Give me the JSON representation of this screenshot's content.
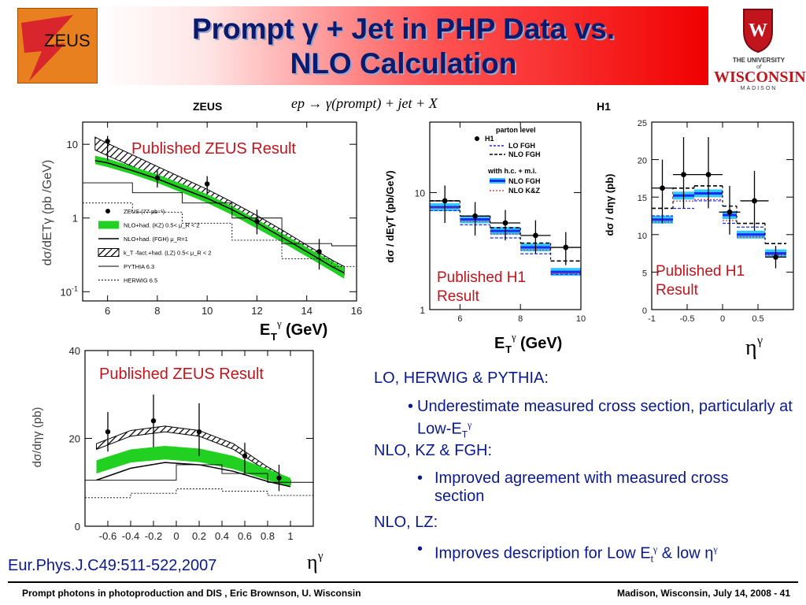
{
  "slide": {
    "title_line1": "Prompt γ + Jet in PHP Data vs.",
    "title_line2": "NLO Calculation",
    "zeus_logo_text": "ZEUS",
    "uw_logo": {
      "line1": "THE UNIVERSITY",
      "line2": "of",
      "line3": "WISCONSIN",
      "line4": "MADISON"
    },
    "label_zeus": "ZEUS",
    "label_h1": "H1",
    "process": "ep → γ(prompt) + jet + X",
    "reference": "Eur.Phys.J.C49:511-522,2007",
    "footer_left": "Prompt photons in photoproduction and DIS , Eric Brownson, U. Wisconsin",
    "footer_right": "Madison, Wisconsin, July 14, 2008 - 41"
  },
  "text_block": {
    "sections": [
      {
        "heading": "LO, HERWIG & PYTHIA:",
        "bullet": "Underestimate measured cross section, particularly at Low-E",
        "bullet_sub": "T",
        "bullet_sup": "γ"
      },
      {
        "heading": "NLO, KZ & FGH:",
        "bullet": "Improved agreement with measured cross section"
      },
      {
        "heading": "NLO, LZ:",
        "bullet": "Improves description for Low E",
        "bullet_sub": "t",
        "bullet_sup": "γ",
        "bullet_tail": " & low η",
        "bullet_tail_sup": "γ"
      }
    ]
  },
  "chart_data": [
    {
      "id": "zeus-et",
      "type": "scatter",
      "title": "Published ZEUS Result",
      "xlabel": "E_T^γ (GeV)",
      "ylabel": "dσ/dE_T^γ (pb /GeV)",
      "xscale": "linear",
      "yscale": "log",
      "xlim": [
        5,
        16
      ],
      "ylim": [
        0.075,
        20
      ],
      "xticks": [
        6,
        8,
        10,
        12,
        14,
        16
      ],
      "yticks": [
        {
          "v": 10,
          "label": "10"
        },
        {
          "v": 1,
          "label": "1"
        },
        {
          "v": 0.1,
          "label": "10^-1"
        }
      ],
      "data": {
        "x": [
          6,
          8,
          10,
          12,
          14.5
        ],
        "y": [
          11,
          3.5,
          2.9,
          0.9,
          0.35
        ],
        "yerr_lo": [
          6,
          2.6,
          2.1,
          0.6,
          0.2
        ],
        "yerr_hi": [
          13,
          4.4,
          3.7,
          1.3,
          0.52
        ]
      },
      "bands": {
        "x": [
          5.5,
          6,
          7,
          8,
          9,
          10,
          11,
          12,
          13,
          14,
          15,
          15.5
        ],
        "kz": {
          "lo": [
            5.4,
            4.9,
            3.9,
            3.0,
            2.2,
            1.6,
            1.1,
            0.72,
            0.47,
            0.3,
            0.19,
            0.15
          ],
          "hi": [
            7.0,
            6.4,
            5.0,
            3.9,
            2.9,
            2.1,
            1.45,
            0.95,
            0.62,
            0.4,
            0.26,
            0.21
          ]
        },
        "lz": {
          "lo": [
            8.4,
            7.0,
            5.0,
            3.6,
            2.6,
            1.8,
            1.25,
            0.82,
            0.53,
            0.33,
            0.21,
            0.17
          ],
          "hi": [
            12.5,
            10.3,
            7.2,
            5.0,
            3.5,
            2.45,
            1.65,
            1.08,
            0.69,
            0.43,
            0.27,
            0.22
          ]
        }
      },
      "fgh_line": {
        "x": [
          5.5,
          6,
          7,
          8,
          9,
          10,
          11,
          12,
          13,
          14,
          15,
          15.5
        ],
        "y": [
          6.0,
          5.6,
          4.4,
          3.4,
          2.5,
          1.85,
          1.3,
          0.86,
          0.55,
          0.35,
          0.22,
          0.18
        ]
      },
      "pythia": {
        "edges": [
          5,
          7,
          9,
          11,
          13,
          15,
          16
        ],
        "y": [
          3.0,
          2.2,
          1.6,
          1.0,
          0.45,
          0.42
        ]
      },
      "herwig": {
        "edges": [
          5,
          7,
          9,
          11,
          13,
          15,
          16
        ],
        "y": [
          1.6,
          1.2,
          0.85,
          0.5,
          0.28,
          0.22
        ]
      },
      "legend": [
        "ZEUS (77 pb⁻¹)",
        "NLO+had. (KZ) 0.5< μ_R < 2",
        "NLO+had. (FGH) μ_R=1",
        "k_T -fact.+had. (LZ) 0.5< μ_R < 2",
        "PYTHIA 6.3",
        "HERWIG 6.5"
      ],
      "legend_position": "bottom-left"
    },
    {
      "id": "zeus-eta",
      "type": "scatter",
      "title": "Published ZEUS Result",
      "xlabel": "η^γ",
      "ylabel": "dσ/dη^γ (pb)",
      "xscale": "linear",
      "yscale": "linear",
      "xlim": [
        -0.8,
        1.2
      ],
      "ylim": [
        0,
        40
      ],
      "xticks": [
        -0.6,
        -0.4,
        -0.2,
        0,
        0.2,
        0.4,
        0.6,
        0.8,
        1
      ],
      "yticks": [
        0,
        20,
        40
      ],
      "data": {
        "x": [
          -0.6,
          -0.2,
          0.2,
          0.6,
          0.9
        ],
        "y": [
          21.5,
          24,
          21.5,
          16,
          11
        ],
        "yerr_lo": [
          17,
          18,
          16,
          12,
          8
        ],
        "yerr_hi": [
          26,
          30,
          28,
          19,
          14
        ]
      },
      "bands": {
        "x": [
          -0.7,
          -0.4,
          -0.1,
          0.2,
          0.5,
          0.8,
          1.0
        ],
        "kz": {
          "lo": [
            12,
            14.5,
            15.2,
            14.6,
            13,
            10.5,
            9
          ],
          "hi": [
            15,
            17.5,
            18.3,
            17.7,
            16,
            13,
            11
          ]
        },
        "lz": {
          "lo": [
            17.5,
            20.5,
            21.5,
            20.5,
            17.5,
            12.5,
            9.5
          ],
          "hi": [
            18.8,
            21.8,
            22.8,
            21.8,
            18.8,
            13.5,
            10.5
          ]
        }
      },
      "fgh_line": {
        "x": [
          -0.7,
          -0.4,
          -0.1,
          0.2,
          0.5,
          0.8,
          1.0
        ],
        "y": [
          10.5,
          13.2,
          14.5,
          14,
          12.5,
          10.2,
          9
        ]
      },
      "pythia": {
        "edges": [
          -0.8,
          -0.4,
          0,
          0.4,
          0.8,
          1.2
        ],
        "y": [
          10.5,
          10.5,
          14,
          12,
          10
        ]
      },
      "herwig": {
        "edges": [
          -0.8,
          -0.4,
          0,
          0.4,
          0.8,
          1.2
        ],
        "y": [
          6.5,
          7.5,
          8.5,
          8,
          7
        ]
      }
    },
    {
      "id": "h1-et",
      "type": "scatter",
      "title": "Published H1 Result",
      "xlabel": "E_T^γ (GeV)",
      "ylabel": "dσ / dE_T^γ (pb/GeV)",
      "xscale": "linear",
      "yscale": "log",
      "xlim": [
        5,
        10
      ],
      "ylim": [
        1,
        40
      ],
      "xticks": [
        6,
        8,
        10
      ],
      "yticks": [
        {
          "v": 10,
          "label": "10"
        },
        {
          "v": 1,
          "label": "1"
        }
      ],
      "data": {
        "x": [
          5.5,
          6.5,
          7.5,
          8.5,
          9.5
        ],
        "y": [
          8.5,
          6.3,
          5.5,
          4.3,
          3.4
        ],
        "yerr_lo": [
          5.5,
          4.3,
          3.9,
          3.0,
          2.4
        ],
        "yerr_hi": [
          11.5,
          8.3,
          7.1,
          5.8,
          4.6
        ],
        "xerr": 0.5
      },
      "bins": [
        5,
        6,
        7,
        8,
        9,
        10
      ],
      "lo_fgh": [
        7.0,
        5.3,
        4.1,
        3.0,
        2.0
      ],
      "nlo_fgh": [
        8.5,
        6.3,
        5.0,
        3.7,
        2.6
      ],
      "nlo_fgh_hc": [
        7.5,
        5.9,
        4.7,
        3.4,
        2.1
      ],
      "nlo_kz": [
        8.0,
        6.1,
        4.8,
        3.5,
        2.2
      ],
      "legend_title": "parton level",
      "legend": [
        "H1",
        "LO FGH",
        "NLO FGH"
      ],
      "legend2_title": "with h.c. + m.i.",
      "legend2": [
        "NLO FGH",
        "NLO K&Z"
      ],
      "legend_position": "top-right"
    },
    {
      "id": "h1-eta",
      "type": "scatter",
      "title": "Published H1 Result",
      "xlabel": "η^γ",
      "ylabel": "dσ / dη^γ (pb)",
      "xscale": "linear",
      "yscale": "linear",
      "xlim": [
        -1,
        1
      ],
      "ylim": [
        0,
        25
      ],
      "xticks": [
        -1,
        -0.5,
        0,
        0.5
      ],
      "yticks": [
        0,
        5,
        10,
        15,
        20,
        25
      ],
      "data": {
        "x": [
          -0.85,
          -0.55,
          -0.2,
          0.1,
          0.45,
          0.75
        ],
        "y": [
          16.2,
          18,
          18,
          13,
          14.5,
          7
        ],
        "yerr_lo": [
          11.5,
          13.5,
          13.5,
          10,
          10.5,
          5.5
        ],
        "yerr_hi": [
          20,
          23,
          23,
          16.5,
          18.5,
          8.5
        ],
        "xerr": [
          0.15,
          0.15,
          0.2,
          0.15,
          0.2,
          0.15
        ]
      },
      "bins": [
        -1,
        -0.7,
        -0.4,
        0,
        0.2,
        0.6,
        0.9
      ],
      "lo_fgh": [
        12.5,
        13.5,
        14.5,
        11.5,
        11,
        7
      ],
      "nlo_fgh": [
        13.5,
        16.2,
        16.5,
        13.8,
        11.5,
        8.8
      ],
      "nlo_fgh_hc": [
        12.0,
        15.2,
        15.5,
        12.6,
        10.0,
        7.5
      ],
      "nlo_kz": [
        12.2,
        15.0,
        15.2,
        12.4,
        10.2,
        7.8
      ]
    }
  ]
}
